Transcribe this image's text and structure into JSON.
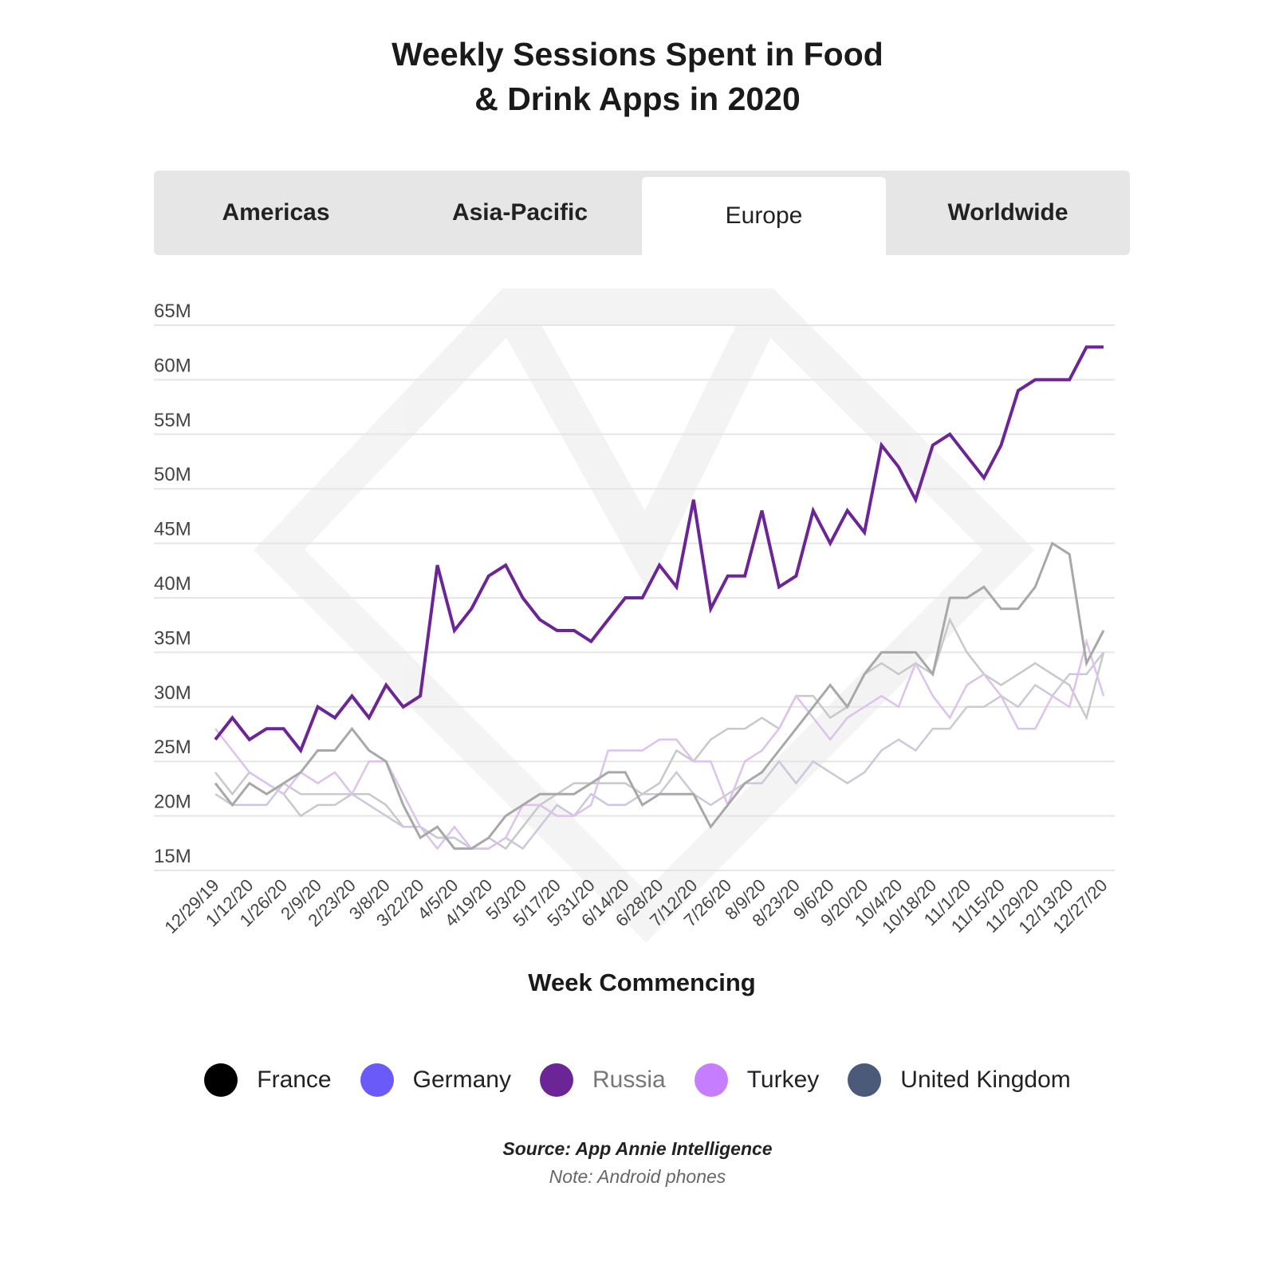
{
  "tabs": [
    {
      "label": "Americas",
      "active": false
    },
    {
      "label": "Asia-Pacific",
      "active": false
    },
    {
      "label": "Europe",
      "active": true
    },
    {
      "label": "Worldwide",
      "active": false
    }
  ],
  "source": "Source: App Annie Intelligence",
  "note": "Note: Android phones",
  "colors": {
    "France": "#000000",
    "Germany": "#6a5af9",
    "Russia": "#6c2596",
    "Turkey": "#c77dff",
    "United Kingdom": "#4a5a78",
    "gridline": "#e5e5e5"
  },
  "chart_data": {
    "type": "line",
    "title_lines": [
      "Weekly Sessions Spent in Food",
      "& Drink Apps in 2020"
    ],
    "xlabel": "Week Commencing",
    "ylabel": "",
    "ylim": [
      15,
      65
    ],
    "yticks": [
      "15M",
      "20M",
      "25M",
      "30M",
      "35M",
      "40M",
      "45M",
      "50M",
      "55M",
      "60M",
      "65M"
    ],
    "xticks": [
      "12/29/19",
      "1/12/20",
      "1/26/20",
      "2/9/20",
      "2/23/20",
      "3/8/20",
      "3/22/20",
      "4/5/20",
      "4/19/20",
      "5/3/20",
      "5/17/20",
      "5/31/20",
      "6/14/20",
      "6/28/20",
      "7/12/20",
      "7/26/20",
      "8/9/20",
      "8/23/20",
      "9/6/20",
      "9/20/20",
      "10/4/20",
      "10/18/20",
      "11/1/20",
      "11/15/20",
      "11/29/20",
      "12/13/20",
      "12/27/20"
    ],
    "grid": true,
    "legend_position": "bottom",
    "series": [
      {
        "name": "France",
        "color": "#000000",
        "line_color": "#a8a8a8",
        "width": 3,
        "values": [
          23,
          21,
          23,
          22,
          23,
          24,
          26,
          26,
          28,
          26,
          25,
          21,
          18,
          19,
          17,
          17,
          18,
          20,
          21,
          22,
          22,
          22,
          23,
          24,
          24,
          21,
          22,
          22,
          22,
          19,
          21,
          23,
          24,
          26,
          28,
          30,
          32,
          30,
          33,
          35,
          35,
          35,
          33,
          40,
          40,
          41,
          39,
          39,
          41,
          45,
          44,
          34,
          37
        ]
      },
      {
        "name": "Germany",
        "color": "#6a5af9",
        "line_color": "#c9c9d9",
        "width": 2.5,
        "values": [
          22,
          21,
          21,
          21,
          23,
          22,
          22,
          22,
          22,
          21,
          20,
          19,
          19,
          18,
          18,
          17,
          17,
          18,
          17,
          19,
          21,
          20,
          22,
          21,
          21,
          22,
          22,
          24,
          22,
          21,
          22,
          23,
          23,
          25,
          23,
          25,
          24,
          23,
          24,
          26,
          27,
          26,
          28,
          28,
          30,
          30,
          31,
          30,
          32,
          31,
          33,
          33,
          35
        ]
      },
      {
        "name": "Russia",
        "color": "#6c2596",
        "line_color": "#6c2596",
        "width": 4,
        "values": [
          27,
          29,
          27,
          28,
          28,
          26,
          30,
          29,
          31,
          29,
          32,
          30,
          31,
          43,
          37,
          39,
          42,
          43,
          40,
          38,
          37,
          37,
          36,
          38,
          40,
          40,
          43,
          41,
          49,
          39,
          42,
          42,
          48,
          41,
          42,
          48,
          45,
          48,
          46,
          54,
          52,
          49,
          54,
          55,
          53,
          51,
          54,
          59,
          60,
          60,
          60,
          63,
          63
        ]
      },
      {
        "name": "Turkey",
        "color": "#c77dff",
        "line_color": "#dcc2ec",
        "width": 2.5,
        "values": [
          28,
          26,
          24,
          23,
          22,
          24,
          23,
          24,
          22,
          25,
          25,
          22,
          19,
          17,
          19,
          17,
          17,
          18,
          21,
          21,
          20,
          20,
          21,
          26,
          26,
          26,
          27,
          27,
          25,
          25,
          21,
          25,
          26,
          28,
          31,
          29,
          27,
          29,
          30,
          31,
          30,
          34,
          31,
          29,
          32,
          33,
          31,
          28,
          28,
          31,
          30,
          36,
          31
        ]
      },
      {
        "name": "United Kingdom",
        "color": "#4a5a78",
        "line_color": "#c8c8c8",
        "width": 2.5,
        "values": [
          24,
          22,
          24,
          23,
          22,
          20,
          21,
          21,
          22,
          22,
          21,
          19,
          19,
          18,
          18,
          17,
          18,
          17,
          19,
          21,
          22,
          23,
          23,
          23,
          23,
          22,
          23,
          26,
          25,
          27,
          28,
          28,
          29,
          28,
          31,
          31,
          29,
          30,
          33,
          34,
          33,
          34,
          33,
          38,
          35,
          33,
          32,
          33,
          34,
          33,
          32,
          29,
          35
        ]
      }
    ]
  }
}
